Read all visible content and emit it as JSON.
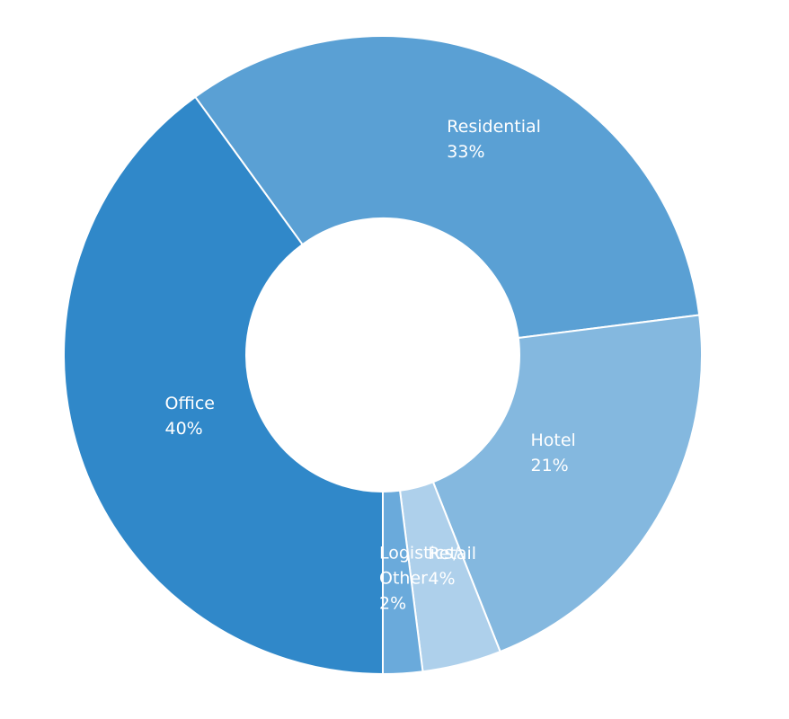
{
  "chart_data": {
    "type": "pie",
    "donut": true,
    "title": "",
    "slices": [
      {
        "label_lines": [
          "Office"
        ],
        "value": 40,
        "value_label": "40%",
        "color": "#3088c9"
      },
      {
        "label_lines": [
          "Residential"
        ],
        "value": 33,
        "value_label": "33%",
        "color": "#5aa0d4"
      },
      {
        "label_lines": [
          "Hotel"
        ],
        "value": 21,
        "value_label": "21%",
        "color": "#84b8df"
      },
      {
        "label_lines": [
          "Retail"
        ],
        "value": 4,
        "value_label": "4%",
        "color": "#aed0eb"
      },
      {
        "label_lines": [
          "Logistics/",
          "Other"
        ],
        "value": 2,
        "value_label": "2%",
        "color": "#6aaadb"
      }
    ],
    "legend": "none"
  }
}
